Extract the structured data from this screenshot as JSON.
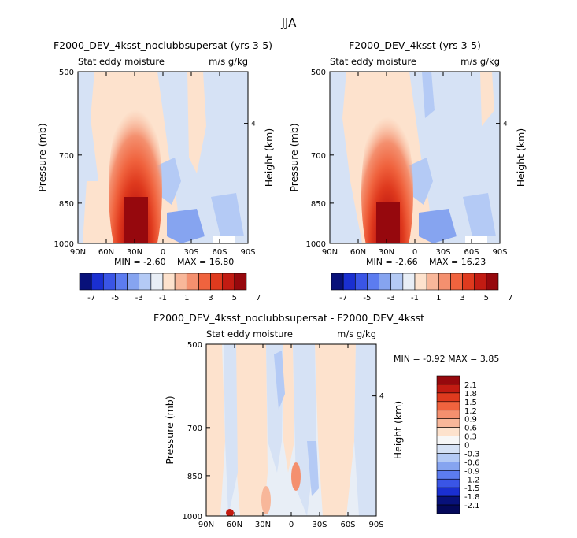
{
  "page": {
    "title": "JJA"
  },
  "panels": [
    {
      "id": "left",
      "title": "F2000_DEV_4ksst_noclubbsupersat (yrs 3-5)",
      "field_label": "Stat eddy moisture",
      "units_label": "m/s g/kg",
      "min_label": "MIN = -2.60",
      "max_label": "MAX = 16.80"
    },
    {
      "id": "right",
      "title": "F2000_DEV_4ksst (yrs 3-5)",
      "field_label": "Stat eddy moisture",
      "units_label": "m/s g/kg",
      "min_label": "MIN = -2.66",
      "max_label": "MAX = 16.23"
    },
    {
      "id": "diff",
      "title": "F2000_DEV_4ksst_noclubbsupersat - F2000_DEV_4ksst",
      "field_label": "Stat eddy moisture",
      "units_label": "m/s g/kg",
      "minmax_label": "MIN = -0.92 MAX = 3.85"
    }
  ],
  "axes": {
    "ylabel": "Pressure (mb)",
    "y2label": "Height (km)",
    "y_ticks": [
      "500",
      "700",
      "850",
      "1000"
    ],
    "y2_ticks": [
      "4"
    ],
    "x_ticks": [
      "90N",
      "60N",
      "30N",
      "0",
      "30S",
      "60S",
      "90S"
    ]
  },
  "colorbars": {
    "horizontal_labels": [
      "-7",
      "-5",
      "-3",
      "-1",
      "1",
      "3",
      "5",
      "7"
    ],
    "horizontal_colors": [
      "#08117a",
      "#1a2fd1",
      "#3a55e6",
      "#5c7cf0",
      "#86a4f0",
      "#b4caf5",
      "#e8eef6",
      "#fde2cd",
      "#f8b79a",
      "#f4906f",
      "#f0633e",
      "#df3a1e",
      "#c21b12",
      "#96080d"
    ],
    "vertical_labels": [
      "2.1",
      "1.8",
      "1.5",
      "1.2",
      "0.9",
      "0.6",
      "0.3",
      "0",
      "-0.3",
      "-0.6",
      "-0.9",
      "-1.2",
      "-1.5",
      "-1.8",
      "-2.1"
    ],
    "vertical_colors": [
      "#96080d",
      "#c21b12",
      "#df3a1e",
      "#f0633e",
      "#f4906f",
      "#f8b79a",
      "#fde2cd",
      "#f7f7f7",
      "#d6e2f5",
      "#b4caf5",
      "#86a4f0",
      "#5c7cf0",
      "#3a55e6",
      "#1a2fd1",
      "#08117a",
      "#04085a"
    ]
  },
  "chart_data": [
    {
      "type": "heatmap",
      "title": "F2000_DEV_4ksst_noclubbsupersat (yrs 3-5)",
      "variable": "Stat eddy moisture",
      "units": "m/s g/kg",
      "xlabel": "",
      "ylabel": "Pressure (mb)",
      "y2label": "Height (km)",
      "x_range": [
        "90N",
        "90S"
      ],
      "y_range": [
        1000,
        500
      ],
      "contour_levels": [
        -7,
        -6,
        -5,
        -4,
        -3,
        -2,
        -1,
        0,
        1,
        2,
        3,
        4,
        5,
        6,
        7
      ],
      "min": -2.6,
      "max": 16.8,
      "max_location": {
        "lat": "~20N",
        "pressure": 950
      }
    },
    {
      "type": "heatmap",
      "title": "F2000_DEV_4ksst (yrs 3-5)",
      "variable": "Stat eddy moisture",
      "units": "m/s g/kg",
      "xlabel": "",
      "ylabel": "Pressure (mb)",
      "y2label": "Height (km)",
      "x_range": [
        "90N",
        "90S"
      ],
      "y_range": [
        1000,
        500
      ],
      "contour_levels": [
        -7,
        -6,
        -5,
        -4,
        -3,
        -2,
        -1,
        0,
        1,
        2,
        3,
        4,
        5,
        6,
        7
      ],
      "min": -2.66,
      "max": 16.23,
      "max_location": {
        "lat": "~20N",
        "pressure": 950
      }
    },
    {
      "type": "heatmap",
      "title": "F2000_DEV_4ksst_noclubbsupersat - F2000_DEV_4ksst",
      "variable": "Stat eddy moisture",
      "units": "m/s g/kg",
      "xlabel": "",
      "ylabel": "Pressure (mb)",
      "y2label": "Height (km)",
      "x_range": [
        "90N",
        "90S"
      ],
      "y_range": [
        1000,
        500
      ],
      "contour_levels": [
        -2.1,
        -1.8,
        -1.5,
        -1.2,
        -0.9,
        -0.6,
        -0.3,
        0,
        0.3,
        0.6,
        0.9,
        1.2,
        1.5,
        1.8,
        2.1
      ],
      "min": -0.92,
      "max": 3.85
    }
  ]
}
